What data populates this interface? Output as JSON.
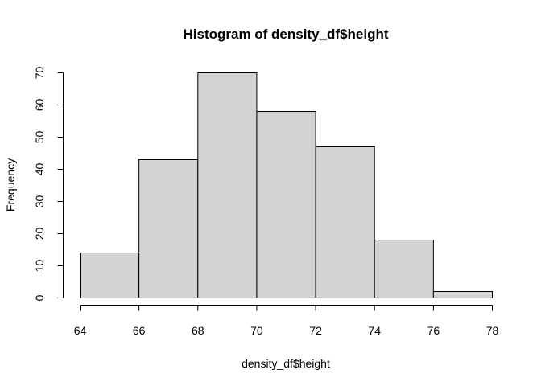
{
  "chart_data": {
    "type": "bar",
    "title": "Histogram of density_df$height",
    "xlabel": "density_df$height",
    "ylabel": "Frequency",
    "bins": [
      {
        "from": 64,
        "to": 66,
        "count": 14
      },
      {
        "from": 66,
        "to": 68,
        "count": 43
      },
      {
        "from": 68,
        "to": 70,
        "count": 70
      },
      {
        "from": 70,
        "to": 72,
        "count": 58
      },
      {
        "from": 72,
        "to": 74,
        "count": 47
      },
      {
        "from": 74,
        "to": 76,
        "count": 18
      },
      {
        "from": 76,
        "to": 78,
        "count": 2
      }
    ],
    "xticks": [
      "64",
      "66",
      "68",
      "70",
      "72",
      "74",
      "76",
      "78"
    ],
    "yticks": [
      "0",
      "10",
      "20",
      "30",
      "40",
      "50",
      "60",
      "70"
    ],
    "xlim": [
      64,
      78
    ],
    "ylim": [
      0,
      70
    ],
    "bar_fill": "#d3d3d3",
    "bar_stroke": "#000000",
    "grid": false
  }
}
